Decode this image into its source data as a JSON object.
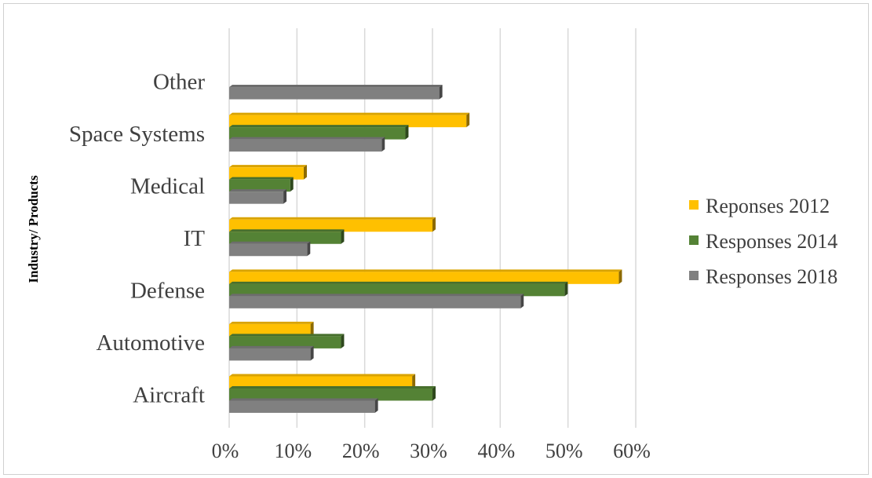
{
  "chart_data": {
    "type": "bar",
    "orientation": "horizontal",
    "style": "3d",
    "ylabel": "Industry/ Products",
    "xlabel": "",
    "categories": [
      "Aircraft",
      "Automotive",
      "Defense",
      "IT",
      "Medical",
      "Space Systems",
      "Other"
    ],
    "series": [
      {
        "name": "Reponses 2012",
        "color": "#FFC000",
        "values": [
          0.27,
          0.12,
          0.575,
          0.3,
          0.11,
          0.35,
          null
        ]
      },
      {
        "name": "Responses 2014",
        "color": "#548235",
        "values": [
          0.3,
          0.165,
          0.495,
          0.165,
          0.09,
          0.26,
          null
        ]
      },
      {
        "name": "Responses 2018",
        "color": "#808080",
        "values": [
          0.215,
          0.12,
          0.43,
          0.115,
          0.08,
          0.225,
          0.31
        ]
      }
    ],
    "xlim": [
      0,
      0.6
    ],
    "xticks": [
      "0%",
      "10%",
      "20%",
      "30%",
      "40%",
      "50%",
      "60%"
    ],
    "grid": true,
    "legend_position": "right"
  }
}
